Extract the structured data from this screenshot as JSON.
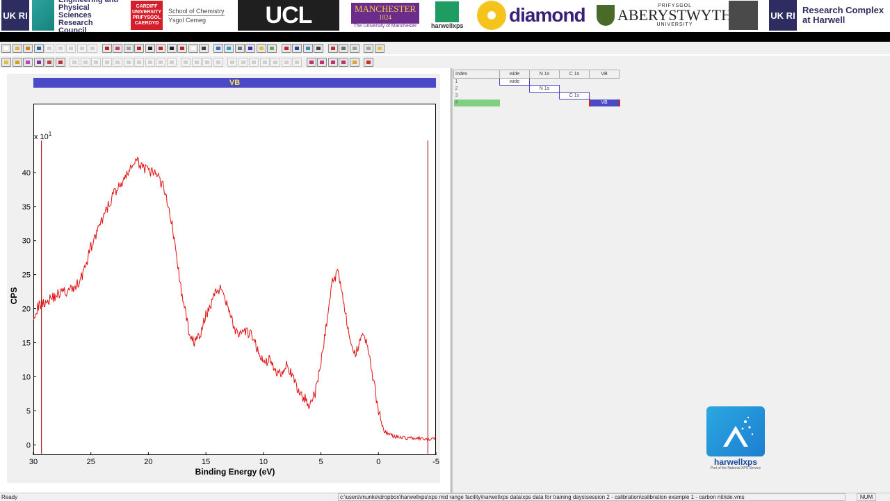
{
  "banner": {
    "ukri_label": "UK RI",
    "epsrc_text": "Engineering and Physical Sciences Research Council",
    "cardiff_line1": "CARDIFF",
    "cardiff_line2": "UNIVERSITY",
    "cardiff_line3": "PRIFYSGOL",
    "cardiff_line4": "CAERDYD",
    "school_line1": "School of Chemistry",
    "school_line2": "Ysgol Cemeg",
    "ucl_label": "UCL",
    "manchester_label": "MANCHESTER",
    "manchester_year": "1824",
    "manchester_sub": "The University of Manchester",
    "harwellxps_label": "harwellxps",
    "diamond_label": "diamond",
    "aber_top": "PRIFYSGOL",
    "aber_label": "ABERYSTWYTH",
    "aber_bottom": "UNIVERSITY",
    "rch_label": "Research Complex at Harwell"
  },
  "toolbar_colors": {
    "row1": [
      "#ffffff",
      "#e0b040",
      "#d08020",
      "#2a5fb0",
      "#888",
      "#888",
      "#888",
      "#888",
      "#888",
      "#c02020",
      "#c04060",
      "#a0a0a0",
      "#c02020",
      "#202020",
      "#c02020",
      "#202020",
      "#c02020",
      "#ffffff",
      "#404040",
      "#3070c0",
      "#30a0d0",
      "#707070",
      "#3030b0",
      "#e0c040",
      "#70a070",
      "#c02030",
      "#2040a0",
      "#3090c0",
      "#404040",
      "#c03030",
      "#707070",
      "#a0a0a0",
      "#a0a0a0",
      "#e0c040"
    ],
    "row2": [
      "#e0c040",
      "#d0a020",
      "#c040c0",
      "#8030a0",
      "#c04040",
      "#c03030",
      "#888",
      "#888",
      "#888",
      "#888",
      "#888",
      "#888",
      "#888",
      "#888",
      "#888",
      "#888",
      "#888",
      "#888",
      "#888",
      "#888",
      "#888",
      "#888",
      "#888",
      "#888",
      "#888",
      "#888",
      "#888",
      "#c03070",
      "#c03070",
      "#c03070",
      "#c03070",
      "#e0a040",
      "#c03030"
    ]
  },
  "spectrum": {
    "title": "VB",
    "xlabel": "Binding Energy (eV)",
    "ylabel": "CPS",
    "y_multiplier": "x 10",
    "y_multiplier_exp": "1",
    "x_ticks": [
      "30",
      "25",
      "20",
      "15",
      "10",
      "5",
      "0",
      "-5"
    ],
    "y_ticks": [
      "0",
      "5",
      "10",
      "15",
      "20",
      "25",
      "30",
      "35",
      "40"
    ]
  },
  "chart_data": {
    "type": "line",
    "title": "VB",
    "xlabel": "Binding Energy (eV)",
    "ylabel": "CPS",
    "x_reversed": true,
    "xlim": [
      30,
      -5
    ],
    "ylim": [
      -1.5,
      50
    ],
    "y_scale_note": "x 10^1",
    "region_markers": [
      29.3,
      -4.3
    ],
    "series": [
      {
        "color": "#e01010",
        "x": [
          30,
          29.5,
          29,
          28.5,
          28,
          27.5,
          27,
          26.5,
          26,
          25.5,
          25,
          24.5,
          24,
          23.5,
          23,
          22.5,
          22,
          21.5,
          21,
          20.5,
          20,
          19.5,
          19,
          18.5,
          18,
          17.5,
          17,
          16.5,
          16,
          15.5,
          15,
          14.5,
          14,
          13.5,
          13,
          12.5,
          12,
          11.5,
          11,
          10.5,
          10,
          9.5,
          9,
          8.5,
          8,
          7.5,
          7,
          6.5,
          6,
          5.5,
          5,
          4.5,
          4,
          3.5,
          3,
          2.5,
          2,
          1.5,
          1,
          0.5,
          0,
          -0.5,
          -1,
          -1.5,
          -2,
          -2.5,
          -3,
          -3.5,
          -4,
          -4.5,
          -5
        ],
        "y": [
          19,
          20.5,
          21,
          21.5,
          22,
          22.5,
          22.5,
          23,
          24,
          26,
          29,
          31,
          33,
          35,
          37,
          38,
          39,
          41,
          41.5,
          41,
          40,
          40,
          39,
          37,
          33,
          27,
          21,
          17,
          15,
          16,
          19,
          21,
          23,
          22.5,
          20,
          17,
          16,
          16.5,
          16,
          14,
          12,
          12.5,
          11,
          10.5,
          12,
          10,
          8,
          7,
          6,
          7.5,
          12,
          18,
          24,
          25.5,
          21,
          15,
          13,
          16.5,
          15,
          10,
          5,
          2,
          1.5,
          1.2,
          1.1,
          1,
          1,
          0.9,
          0.8,
          0.8,
          1
        ]
      }
    ],
    "x_ticks": [
      30,
      25,
      20,
      15,
      10,
      5,
      0,
      -5
    ],
    "y_ticks": [
      0,
      5,
      10,
      15,
      20,
      25,
      30,
      35,
      40
    ],
    "grid": false,
    "legend": "none"
  },
  "region_table": {
    "headers": [
      "Index",
      "wide",
      "N 1s",
      "C 1s",
      "VB"
    ],
    "rows": [
      {
        "index": "1",
        "col": 0,
        "label": "wide"
      },
      {
        "index": "2",
        "col": 1,
        "label": "N 1s"
      },
      {
        "index": "3",
        "col": 2,
        "label": "C 1s"
      },
      {
        "index": "4",
        "col": 3,
        "label": "VB",
        "selected": true
      }
    ]
  },
  "hx_badge": {
    "label": "harwellxps",
    "sub": "Part of the National XPS Service"
  },
  "status_bar": {
    "left": "Ready",
    "path": "c:\\users\\munke\\dropbox\\harwellxps\\xps mid range facility\\harwellxps data\\xps data for training days\\session 2 - calibration\\calibration example 1 - carbon nitride.vms",
    "num": "NUM"
  }
}
